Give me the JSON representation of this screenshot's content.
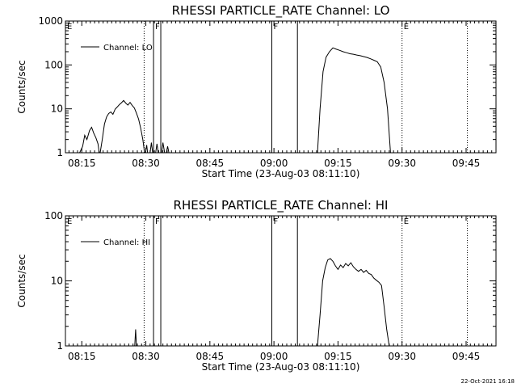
{
  "chart_data": [
    {
      "type": "line",
      "title": "RHESSI PARTICLE_RATE Channel: LO",
      "xlabel": "Start Time (23-Aug-03 08:11:10)",
      "ylabel": "Counts/sec",
      "yscale": "log",
      "ylim": [
        1,
        1000
      ],
      "xlim_minutes_after_0800": [
        11.17,
        112.0
      ],
      "x_ticks": [
        {
          "t": 15,
          "label": "08:15"
        },
        {
          "t": 30,
          "label": "08:30"
        },
        {
          "t": 45,
          "label": "08:45"
        },
        {
          "t": 60,
          "label": "09:00"
        },
        {
          "t": 75,
          "label": "09:15"
        },
        {
          "t": 90,
          "label": "09:30"
        },
        {
          "t": 105,
          "label": "09:45"
        }
      ],
      "y_ticks": [
        {
          "v": 1,
          "label": "1"
        },
        {
          "v": 10,
          "label": "10"
        },
        {
          "v": 100,
          "label": "100"
        },
        {
          "v": 1000,
          "label": "1000"
        }
      ],
      "legend": {
        "label": "Channel: LO",
        "placement": "top-left"
      },
      "markers": [
        {
          "t": 11.17,
          "label": "E",
          "style": "dotted"
        },
        {
          "t": 29.6,
          "label": "",
          "style": "dotted"
        },
        {
          "t": 31.8,
          "label": "F",
          "style": "solid"
        },
        {
          "t": 33.5,
          "label": "",
          "style": "solid"
        },
        {
          "t": 59.5,
          "label": "F",
          "style": "solid"
        },
        {
          "t": 65.5,
          "label": "",
          "style": "solid"
        },
        {
          "t": 90.0,
          "label": "E",
          "style": "dotted"
        },
        {
          "t": 105.3,
          "label": "",
          "style": "dotted"
        }
      ],
      "series": [
        {
          "name": "Channel: LO",
          "segments": [
            [
              [
                14.5,
                1
              ],
              [
                15.2,
                1.4
              ],
              [
                15.7,
                2.5
              ],
              [
                16.2,
                2.0
              ],
              [
                16.8,
                3.2
              ],
              [
                17.3,
                3.8
              ],
              [
                17.8,
                2.8
              ],
              [
                18.3,
                2.2
              ],
              [
                18.8,
                1.6
              ],
              [
                19.1,
                1.0
              ]
            ],
            [
              [
                19.3,
                1.0
              ],
              [
                19.8,
                2.0
              ],
              [
                20.3,
                4.5
              ],
              [
                20.8,
                6.5
              ],
              [
                21.3,
                7.8
              ],
              [
                21.8,
                8.5
              ],
              [
                22.3,
                7.5
              ],
              [
                22.8,
                9.8
              ],
              [
                23.3,
                11.0
              ],
              [
                23.8,
                12.5
              ],
              [
                24.3,
                13.8
              ],
              [
                24.8,
                15.5
              ],
              [
                25.3,
                13.5
              ],
              [
                25.8,
                12.2
              ],
              [
                26.3,
                14.0
              ],
              [
                26.8,
                12.0
              ],
              [
                27.3,
                10.5
              ],
              [
                27.8,
                8.0
              ],
              [
                28.3,
                5.8
              ],
              [
                28.8,
                3.6
              ],
              [
                29.3,
                2.0
              ],
              [
                29.7,
                1.0
              ]
            ],
            [
              [
                29.9,
                1.0
              ],
              [
                30.2,
                1.5
              ],
              [
                30.4,
                1.0
              ]
            ],
            [
              [
                31.0,
                1.0
              ],
              [
                31.3,
                1.7
              ],
              [
                31.6,
                1.0
              ]
            ],
            [
              [
                32.3,
                1.0
              ],
              [
                32.6,
                1.6
              ],
              [
                32.9,
                1.0
              ]
            ],
            [
              [
                33.7,
                1.0
              ],
              [
                34.0,
                1.7
              ],
              [
                34.4,
                1.0
              ]
            ],
            [
              [
                34.8,
                1.0
              ],
              [
                35.1,
                1.4
              ],
              [
                35.4,
                1.0
              ]
            ],
            [
              [
                70.2,
                1.0
              ],
              [
                70.8,
                10.0
              ],
              [
                71.5,
                70.0
              ],
              [
                72.2,
                150.0
              ],
              [
                73.0,
                200.0
              ],
              [
                73.8,
                245.0
              ],
              [
                74.6,
                228.0
              ],
              [
                75.4,
                215.0
              ],
              [
                76.2,
                200.0
              ],
              [
                77.0,
                190.0
              ],
              [
                77.8,
                180.0
              ],
              [
                78.6,
                175.0
              ],
              [
                79.4,
                168.0
              ],
              [
                80.2,
                162.0
              ],
              [
                81.0,
                155.0
              ],
              [
                81.8,
                148.0
              ],
              [
                82.6,
                138.0
              ],
              [
                83.4,
                128.0
              ],
              [
                84.2,
                118.0
              ],
              [
                85.0,
                90.0
              ],
              [
                85.8,
                40.0
              ],
              [
                86.6,
                10.0
              ],
              [
                87.3,
                1.0
              ]
            ]
          ]
        }
      ]
    },
    {
      "type": "line",
      "title": "RHESSI PARTICLE_RATE Channel: HI",
      "xlabel": "Start Time (23-Aug-03 08:11:10)",
      "ylabel": "Counts/sec",
      "yscale": "log",
      "ylim": [
        1,
        100
      ],
      "xlim_minutes_after_0800": [
        11.17,
        112.0
      ],
      "x_ticks": [
        {
          "t": 15,
          "label": "08:15"
        },
        {
          "t": 30,
          "label": "08:30"
        },
        {
          "t": 45,
          "label": "08:45"
        },
        {
          "t": 60,
          "label": "09:00"
        },
        {
          "t": 75,
          "label": "09:15"
        },
        {
          "t": 90,
          "label": "09:30"
        },
        {
          "t": 105,
          "label": "09:45"
        }
      ],
      "y_ticks": [
        {
          "v": 1,
          "label": "1"
        },
        {
          "v": 10,
          "label": "10"
        },
        {
          "v": 100,
          "label": "100"
        }
      ],
      "legend": {
        "label": "Channel: HI",
        "placement": "top-left"
      },
      "markers": [
        {
          "t": 11.17,
          "label": "E",
          "style": "dotted"
        },
        {
          "t": 29.6,
          "label": "",
          "style": "dotted"
        },
        {
          "t": 31.8,
          "label": "F",
          "style": "solid"
        },
        {
          "t": 33.5,
          "label": "",
          "style": "solid"
        },
        {
          "t": 59.5,
          "label": "F",
          "style": "solid"
        },
        {
          "t": 65.5,
          "label": "",
          "style": "solid"
        },
        {
          "t": 90.0,
          "label": "E",
          "style": "dotted"
        },
        {
          "t": 105.3,
          "label": "",
          "style": "dotted"
        }
      ],
      "series": [
        {
          "name": "Channel: HI",
          "segments": [
            [
              [
                27.4,
                1.0
              ],
              [
                27.6,
                1.8
              ],
              [
                27.8,
                1.0
              ]
            ],
            [
              [
                70.2,
                1.0
              ],
              [
                70.8,
                3.0
              ],
              [
                71.4,
                10.0
              ],
              [
                72.0,
                16.0
              ],
              [
                72.6,
                21.0
              ],
              [
                73.2,
                22.0
              ],
              [
                73.8,
                20.0
              ],
              [
                74.4,
                17.0
              ],
              [
                75.0,
                15.0
              ],
              [
                75.6,
                17.5
              ],
              [
                76.2,
                16.0
              ],
              [
                76.8,
                18.5
              ],
              [
                77.4,
                17.0
              ],
              [
                78.0,
                19.0
              ],
              [
                78.6,
                16.5
              ],
              [
                79.2,
                15.0
              ],
              [
                79.8,
                14.0
              ],
              [
                80.4,
                15.0
              ],
              [
                81.0,
                13.5
              ],
              [
                81.6,
                14.5
              ],
              [
                82.2,
                13.0
              ],
              [
                82.8,
                12.5
              ],
              [
                83.4,
                11.0
              ],
              [
                84.0,
                10.2
              ],
              [
                84.6,
                9.5
              ],
              [
                85.2,
                8.5
              ],
              [
                85.8,
                4.0
              ],
              [
                86.4,
                1.8
              ],
              [
                87.0,
                1.0
              ]
            ]
          ]
        }
      ]
    }
  ],
  "timestamp": "22-Oct-2021 16:18"
}
